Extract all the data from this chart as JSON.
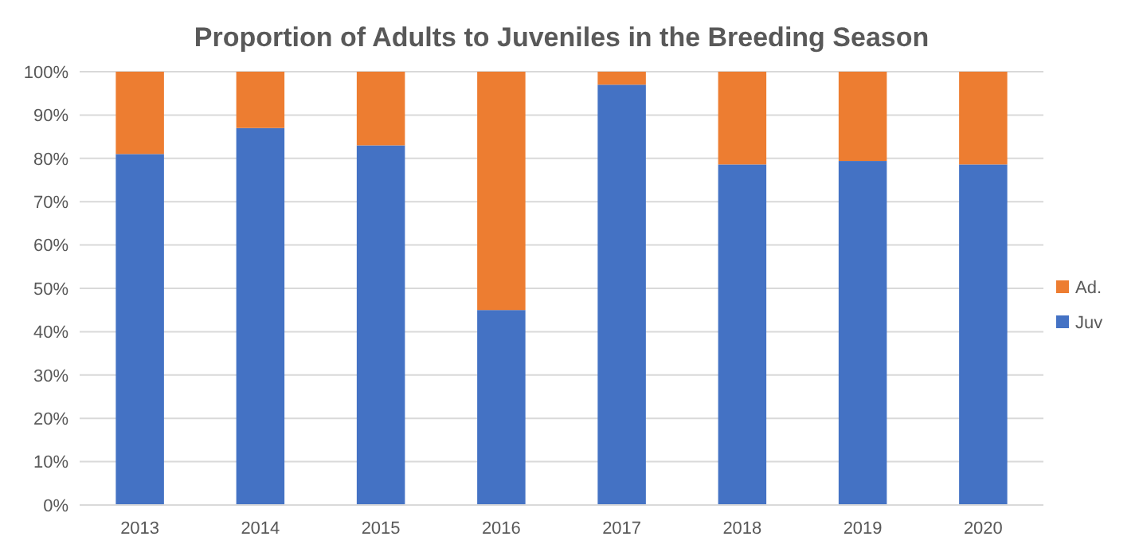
{
  "chart_data": {
    "type": "bar",
    "title": "Proportion of Adults to Juveniles in the Breeding Season",
    "categories": [
      "2013",
      "2014",
      "2015",
      "2016",
      "2017",
      "2018",
      "2019",
      "2020"
    ],
    "stacked": true,
    "series": [
      {
        "name": "Juv",
        "color": "#4472c4",
        "values": [
          81,
          87,
          83,
          45,
          97,
          78.6,
          79.4,
          78.6
        ]
      },
      {
        "name": "Ad.",
        "color": "#ed7d31",
        "values": [
          19,
          13,
          17,
          55,
          3,
          21.4,
          20.6,
          21.4
        ]
      }
    ],
    "ylim": [
      0,
      100
    ],
    "yticks": [
      {
        "value": 0,
        "label": "0%"
      },
      {
        "value": 10,
        "label": "10%"
      },
      {
        "value": 20,
        "label": "20%"
      },
      {
        "value": 30,
        "label": "30%"
      },
      {
        "value": 40,
        "label": "40%"
      },
      {
        "value": 50,
        "label": "50%"
      },
      {
        "value": 60,
        "label": "60%"
      },
      {
        "value": 70,
        "label": "70%"
      },
      {
        "value": 80,
        "label": "80%"
      },
      {
        "value": 90,
        "label": "90%"
      },
      {
        "value": 100,
        "label": "100%"
      }
    ],
    "grid": "y",
    "legend": "right"
  }
}
